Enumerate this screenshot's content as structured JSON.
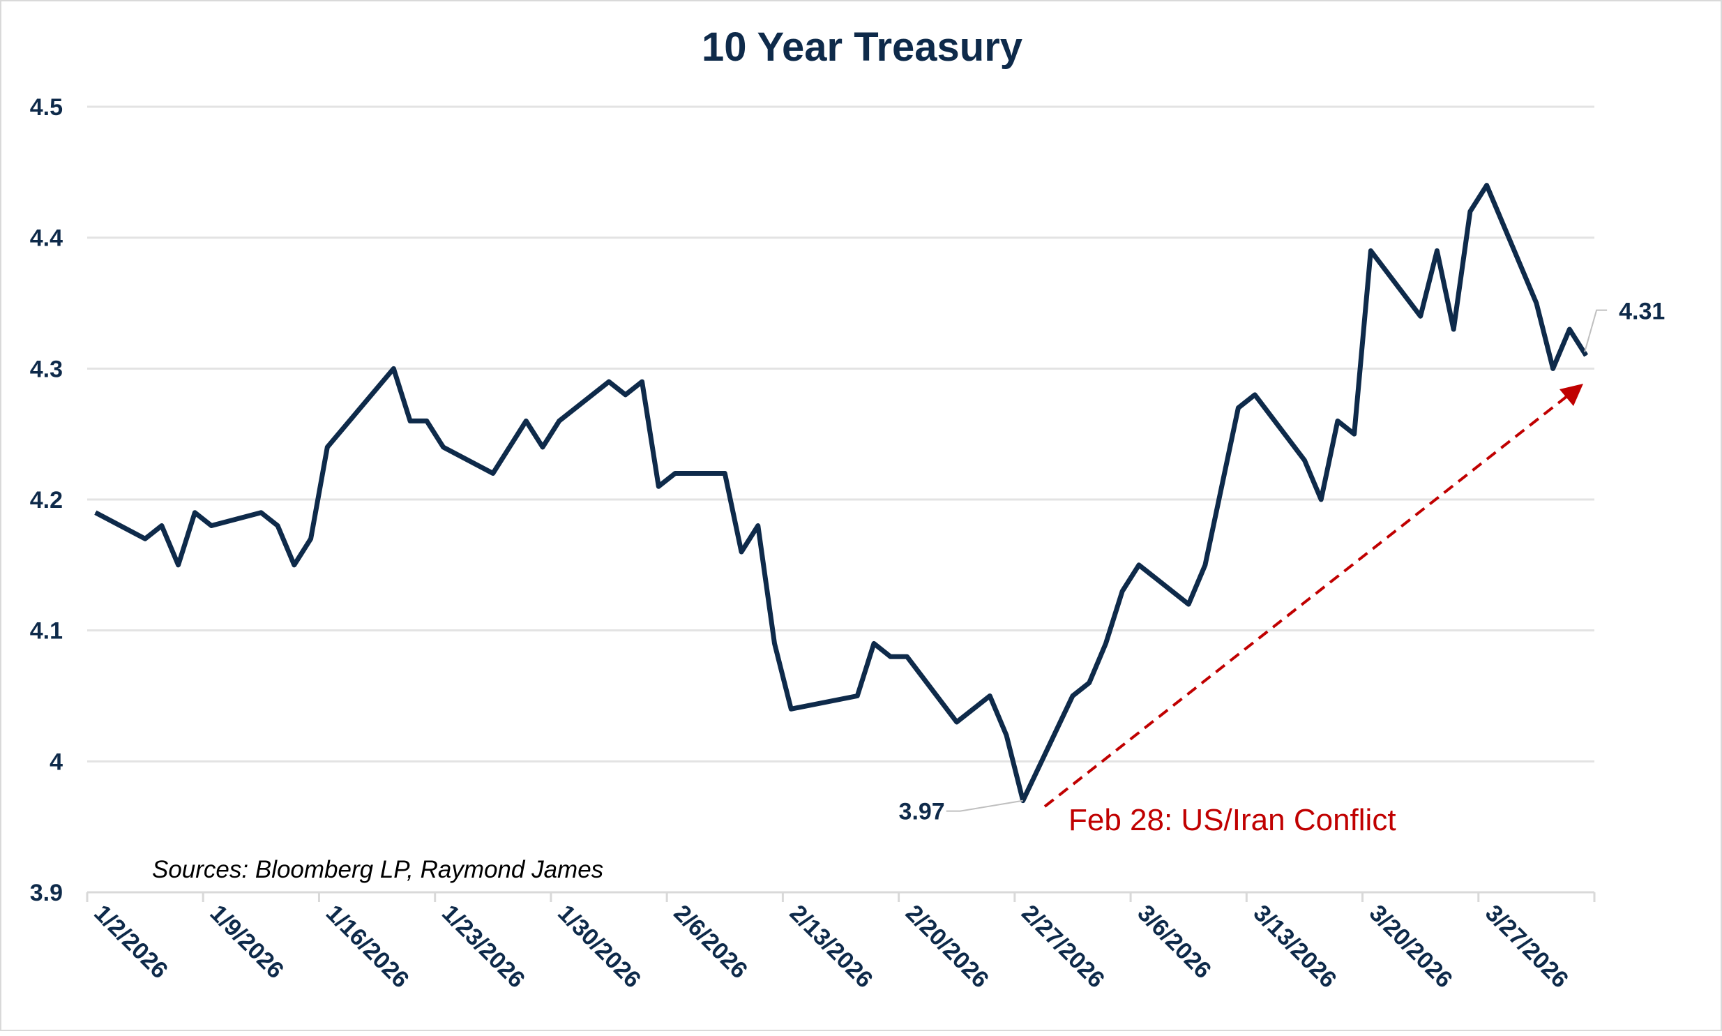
{
  "chart_data": {
    "type": "line",
    "title": "10 Year Treasury",
    "xlabel": "",
    "ylabel": "",
    "ylim": [
      3.9,
      4.5
    ],
    "yticks": [
      "3.9",
      "4",
      "4.1",
      "4.2",
      "4.3",
      "4.4",
      "4.5"
    ],
    "xticks": [
      "1/2/2026",
      "1/9/2026",
      "1/16/2026",
      "1/23/2026",
      "1/30/2026",
      "2/6/2026",
      "2/13/2026",
      "2/20/2026",
      "2/27/2026",
      "3/6/2026",
      "3/13/2026",
      "3/20/2026",
      "3/27/2026"
    ],
    "grid": true,
    "legend": "none",
    "line_color": "#0E2A4A",
    "series": [
      {
        "x": [
          "2026-01-02",
          "2026-01-05",
          "2026-01-06",
          "2026-01-07",
          "2026-01-08",
          "2026-01-09",
          "2026-01-12",
          "2026-01-13",
          "2026-01-14",
          "2026-01-15",
          "2026-01-16",
          "2026-01-20",
          "2026-01-21",
          "2026-01-22",
          "2026-01-23",
          "2026-01-26",
          "2026-01-27",
          "2026-01-28",
          "2026-01-29",
          "2026-01-30",
          "2026-02-02",
          "2026-02-03",
          "2026-02-04",
          "2026-02-05",
          "2026-02-06",
          "2026-02-09",
          "2026-02-10",
          "2026-02-11",
          "2026-02-12",
          "2026-02-13",
          "2026-02-17",
          "2026-02-18",
          "2026-02-19",
          "2026-02-20",
          "2026-02-23",
          "2026-02-24",
          "2026-02-25",
          "2026-02-26",
          "2026-02-27",
          "2026-03-02",
          "2026-03-03",
          "2026-03-04",
          "2026-03-05",
          "2026-03-06",
          "2026-03-09",
          "2026-03-10",
          "2026-03-11",
          "2026-03-12",
          "2026-03-13",
          "2026-03-16",
          "2026-03-17",
          "2026-03-18",
          "2026-03-19",
          "2026-03-20",
          "2026-03-23",
          "2026-03-24",
          "2026-03-25",
          "2026-03-26",
          "2026-03-27",
          "2026-03-30",
          "2026-03-31",
          "2026-04-01",
          "2026-04-02"
        ],
        "values": [
          4.19,
          4.17,
          4.18,
          4.15,
          4.19,
          4.18,
          4.19,
          4.18,
          4.15,
          4.17,
          4.24,
          4.3,
          4.26,
          4.26,
          4.24,
          4.22,
          4.24,
          4.26,
          4.24,
          4.26,
          4.29,
          4.28,
          4.29,
          4.21,
          4.22,
          4.22,
          4.16,
          4.18,
          4.09,
          4.04,
          4.05,
          4.09,
          4.08,
          4.08,
          4.03,
          4.04,
          4.05,
          4.02,
          3.97,
          4.05,
          4.06,
          4.09,
          4.13,
          4.15,
          4.12,
          4.15,
          4.21,
          4.27,
          4.28,
          4.23,
          4.2,
          4.26,
          4.25,
          4.39,
          4.34,
          4.39,
          4.33,
          4.42,
          4.44,
          4.35,
          4.3,
          4.33,
          4.31
        ]
      }
    ],
    "annotations": {
      "low_label": "3.97",
      "last_label": "4.31",
      "event_label": "Feb 28: US/Iran Conflict",
      "event_color": "#C00000",
      "source": "Sources: Bloomberg LP, Raymond James"
    }
  }
}
